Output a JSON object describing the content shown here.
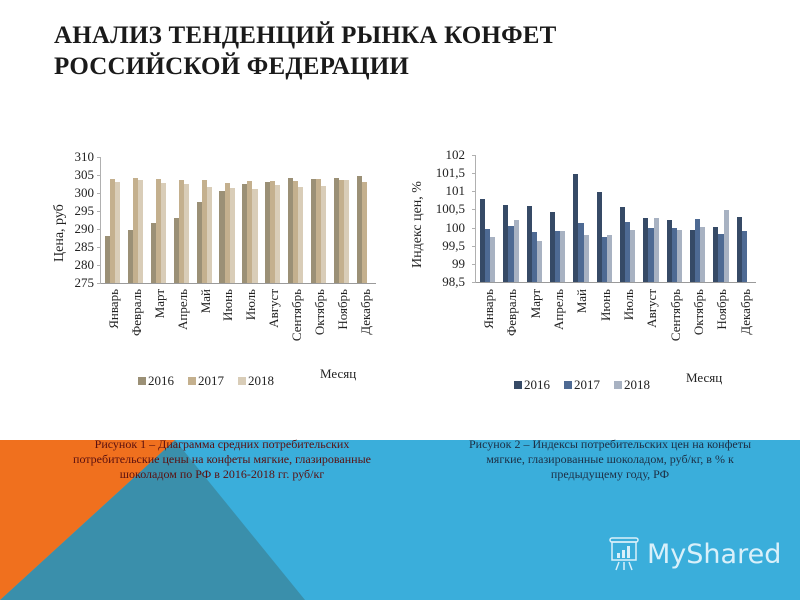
{
  "slide": {
    "title_line1": "АНАЛИЗ ТЕНДЕНЦИЙ РЫНКА КОНФЕТ",
    "title_line2": "РОССИЙСКОЙ ФЕДЕРАЦИИ",
    "caption1": "Рисунок 1 – Диаграмма средних потребительских потребительские цены на конфеты мягкие, глазированные шоколадом по РФ в 2016-2018 гг. руб/кг",
    "caption2": "Рисунок 2 – Индексы потребительских цен на конфеты мягкие, глазированные шоколадом, руб/кг, в % к предыдущему году, РФ",
    "logo_text": "MyShared",
    "colors": {
      "band_blue": "#3aaedb",
      "band_dark_teal": "#3a8fab",
      "band_orange": "#f0701e",
      "caption1_text": "#5a1010",
      "caption2_text": "#1d2f45"
    }
  },
  "chart_data": [
    {
      "type": "bar",
      "title": "",
      "xlabel": "Месяц",
      "ylabel": "Цена, руб",
      "ylim": [
        275,
        310
      ],
      "yticks": [
        "310",
        "305",
        "300",
        "295",
        "290",
        "285",
        "280",
        "275"
      ],
      "grid": false,
      "legend_position": "bottom",
      "categories": [
        "Январь",
        "Февраль",
        "Март",
        "Апрель",
        "Май",
        "Июнь",
        "Июль",
        "Август",
        "Сентябрь",
        "Октябрь",
        "Ноябрь",
        "Декабрь"
      ],
      "series": [
        {
          "name": "2016",
          "color": "#9b9076",
          "values": [
            288.0,
            289.7,
            291.6,
            293.0,
            297.6,
            300.6,
            302.5,
            303.1,
            304.1,
            303.8,
            304.1,
            304.7
          ]
        },
        {
          "name": "2017",
          "color": "#c4b08e",
          "values": [
            303.8,
            304.1,
            303.8,
            303.5,
            303.5,
            302.7,
            303.4,
            303.2,
            303.3,
            303.8,
            303.6,
            303.1
          ]
        },
        {
          "name": "2018",
          "color": "#d9cdb8",
          "values": [
            303.1,
            303.5,
            302.9,
            302.5,
            301.8,
            301.3,
            301.0,
            302.2,
            301.8,
            302.0,
            303.5,
            null
          ]
        }
      ]
    },
    {
      "type": "bar",
      "title": "",
      "xlabel": "Месяц",
      "ylabel": "Индекс цен, %",
      "ylim": [
        98.5,
        102
      ],
      "yticks": [
        "102",
        "101,5",
        "101",
        "100,5",
        "100",
        "99,5",
        "99",
        "98,5"
      ],
      "grid": false,
      "legend_position": "bottom",
      "categories": [
        "Январь",
        "Февраль",
        "Март",
        "Апрель",
        "Май",
        "Июнь",
        "Июль",
        "Август",
        "Сентябрь",
        "Октябрь",
        "Ноябрь",
        "Декабрь"
      ],
      "series": [
        {
          "name": "2016",
          "color": "#364a66",
          "values": [
            100.79,
            100.62,
            100.6,
            100.44,
            101.48,
            100.98,
            100.57,
            100.27,
            100.21,
            99.93,
            100.02,
            100.29
          ]
        },
        {
          "name": "2017",
          "color": "#4e6a93",
          "values": [
            99.96,
            100.04,
            99.88,
            99.9,
            100.13,
            99.74,
            100.16,
            100.0,
            99.98,
            100.24,
            99.82,
            99.91
          ]
        },
        {
          "name": "2018",
          "color": "#a8b2c2",
          "values": [
            99.74,
            100.21,
            99.63,
            99.9,
            99.8,
            99.8,
            99.93,
            100.27,
            99.93,
            100.02,
            100.48,
            null
          ]
        }
      ]
    }
  ]
}
